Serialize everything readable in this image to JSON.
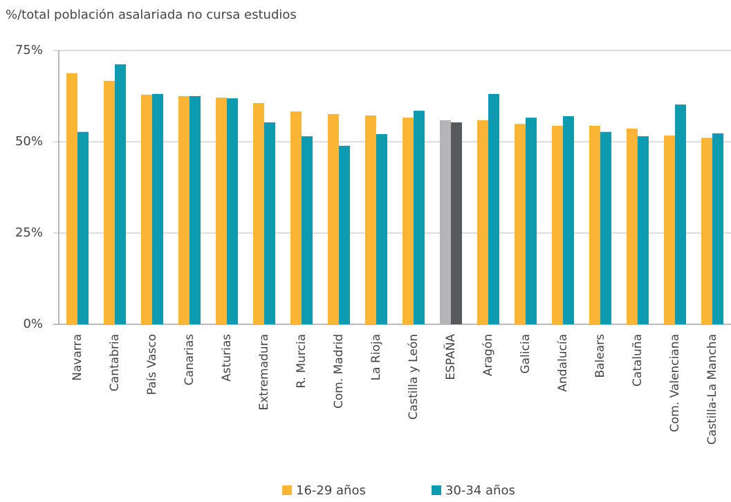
{
  "chart_data": {
    "type": "bar",
    "title": "%/total población asalariada no cursa estudios",
    "categories": [
      "Navarra",
      "Cantabria",
      "País Vasco",
      "Canarias",
      "Asturias",
      "Extremadura",
      "R. Murcia",
      "Com. Madrid",
      "La Rioja",
      "Castilla y León",
      "ESPAÑA",
      "Aragón",
      "Galicia",
      "Andalucía",
      "Balears",
      "Cataluña",
      "Com. Valenciana",
      "Castilla-La Mancha"
    ],
    "series": [
      {
        "name": "16-29 años",
        "color": "#fbb535",
        "colors": [
          "#fbb535",
          "#fbb535",
          "#fbb535",
          "#fbb535",
          "#fbb535",
          "#fbb535",
          "#fbb535",
          "#fbb535",
          "#fbb535",
          "#fbb535",
          "#b5b5b8",
          "#fbb535",
          "#fbb535",
          "#fbb535",
          "#fbb535",
          "#fbb535",
          "#fbb535",
          "#fbb535"
        ],
        "values": [
          68.8,
          66.7,
          62.9,
          62.5,
          62.1,
          60.6,
          58.3,
          57.6,
          57.2,
          56.6,
          55.9,
          55.9,
          54.9,
          54.4,
          54.4,
          53.6,
          51.7,
          51.1
        ]
      },
      {
        "name": "30-34 años",
        "color": "#0e9bb0",
        "colors": [
          "#0e9bb0",
          "#0e9bb0",
          "#0e9bb0",
          "#0e9bb0",
          "#0e9bb0",
          "#0e9bb0",
          "#0e9bb0",
          "#0e9bb0",
          "#0e9bb0",
          "#0e9bb0",
          "#58595b",
          "#0e9bb0",
          "#0e9bb0",
          "#0e9bb0",
          "#0e9bb0",
          "#0e9bb0",
          "#0e9bb0",
          "#0e9bb0"
        ],
        "values": [
          52.7,
          71.2,
          63.1,
          62.5,
          61.9,
          55.3,
          51.5,
          48.9,
          52.1,
          58.5,
          55.3,
          63.1,
          56.6,
          57.0,
          52.7,
          51.5,
          60.2,
          52.3
        ]
      }
    ],
    "ylim": [
      0,
      75
    ],
    "yticks": [
      {
        "value": 0,
        "label": "0%"
      },
      {
        "value": 25,
        "label": "25%"
      },
      {
        "value": 50,
        "label": "50%"
      },
      {
        "value": 75,
        "label": "75%"
      }
    ],
    "grid": true,
    "legend": "bottom"
  }
}
